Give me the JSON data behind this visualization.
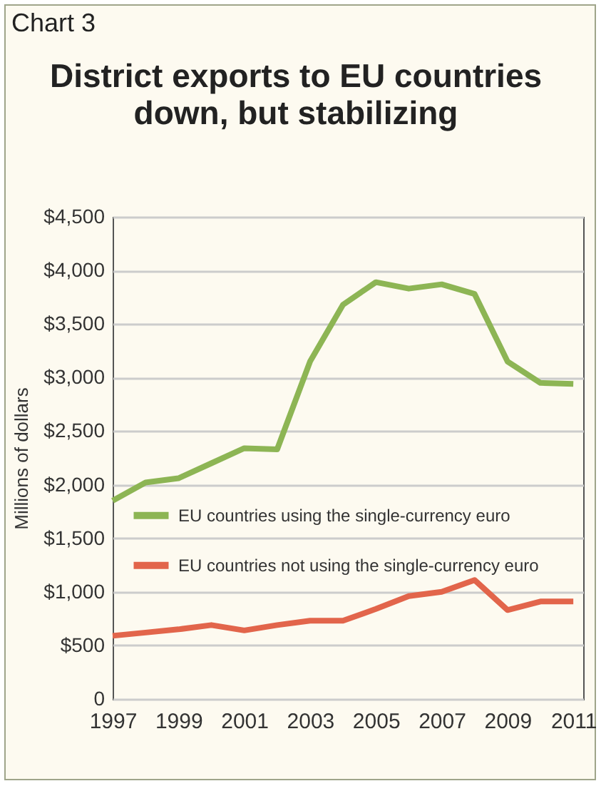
{
  "chart_data": {
    "type": "line",
    "title": "District exports to EU countries down, but stabilizing",
    "annotations": [
      "Chart 3"
    ],
    "ylabel": "Millions of dollars",
    "x": [
      1997,
      1998,
      1999,
      2000,
      2001,
      2002,
      2003,
      2004,
      2005,
      2006,
      2007,
      2008,
      2009,
      2010,
      2011
    ],
    "series": [
      {
        "name": "EU countries using the single-currency euro",
        "color": "#8db554",
        "values": [
          1850,
          2020,
          2060,
          2200,
          2340,
          2330,
          3150,
          3680,
          3890,
          3830,
          3870,
          3780,
          3150,
          2950,
          2940
        ]
      },
      {
        "name": "EU countries not using the single-currency euro",
        "color": "#e2654b",
        "values": [
          590,
          620,
          650,
          690,
          640,
          690,
          730,
          730,
          840,
          960,
          1000,
          1110,
          830,
          910,
          910
        ]
      }
    ],
    "xlim": [
      1997,
      2011.3
    ],
    "xticks": [
      1997,
      1999,
      2001,
      2003,
      2005,
      2007,
      2009,
      2011
    ],
    "ylim": [
      0,
      4500
    ],
    "yticks": [
      {
        "value": 0,
        "label": "0"
      },
      {
        "value": 500,
        "label": "$500"
      },
      {
        "value": 1000,
        "label": "$1,000"
      },
      {
        "value": 1500,
        "label": "$1,500"
      },
      {
        "value": 2000,
        "label": "$2,000"
      },
      {
        "value": 2500,
        "label": "$2,500"
      },
      {
        "value": 3000,
        "label": "$3,000"
      },
      {
        "value": 3500,
        "label": "$3,500"
      },
      {
        "value": 4000,
        "label": "$4,000"
      },
      {
        "value": 4500,
        "label": "$4,500"
      }
    ],
    "grid": "y",
    "legend": "left",
    "marker": "none",
    "line_style": "solid"
  }
}
